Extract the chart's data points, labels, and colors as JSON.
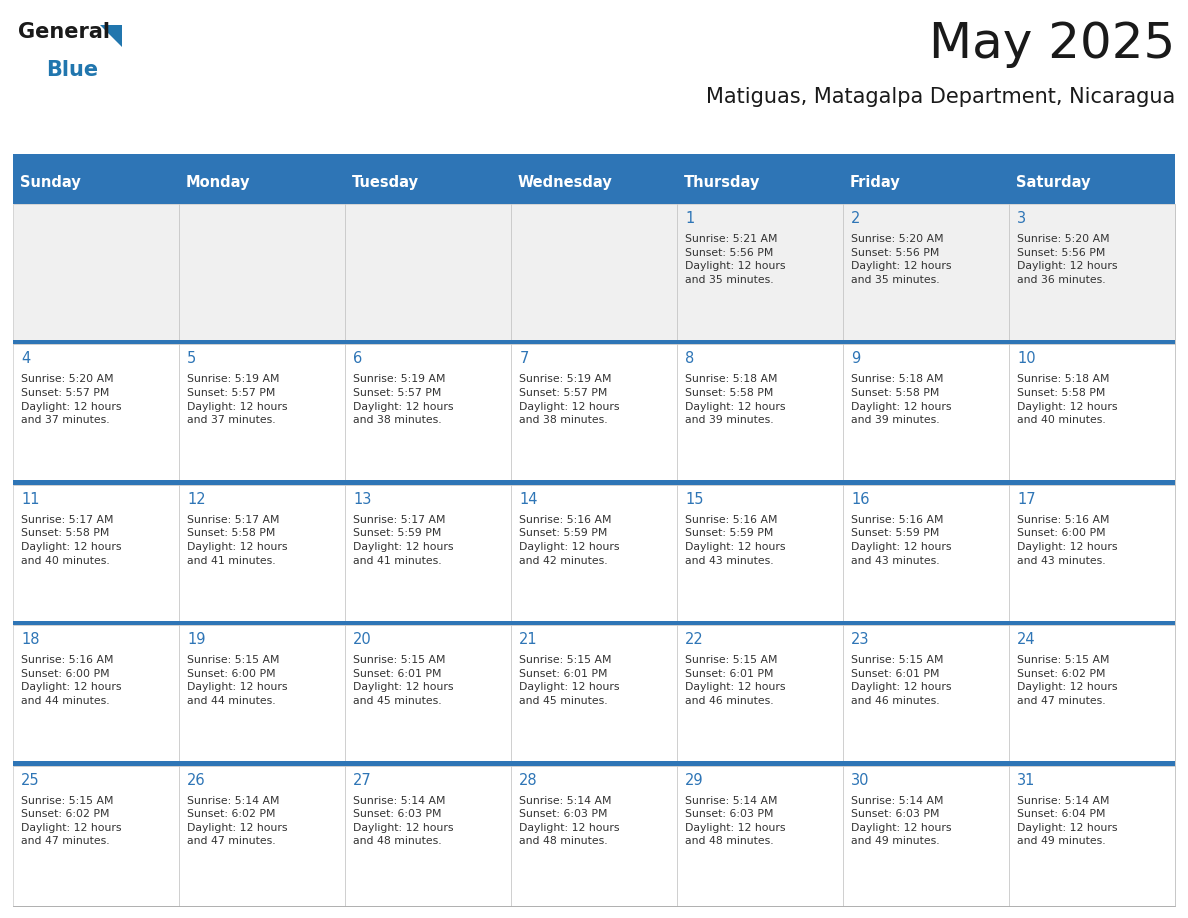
{
  "title": "May 2025",
  "subtitle": "Matiguas, Matagalpa Department, Nicaragua",
  "days_of_week": [
    "Sunday",
    "Monday",
    "Tuesday",
    "Wednesday",
    "Thursday",
    "Friday",
    "Saturday"
  ],
  "header_bg_color": "#2E75B6",
  "header_text_color": "#FFFFFF",
  "cell_bg_color_light": "#F0F0F0",
  "cell_bg_color_white": "#FFFFFF",
  "separator_color": "#2E75B6",
  "day_number_color": "#2E75B6",
  "cell_text_color": "#333333",
  "title_color": "#1a1a1a",
  "logo_general_color": "#1a1a1a",
  "logo_blue_color": "#2176AE",
  "calendar_data": [
    [
      null,
      null,
      null,
      null,
      {
        "day": 1,
        "sunrise": "5:21 AM",
        "sunset": "5:56 PM",
        "daylight": "12 hours\nand 35 minutes."
      },
      {
        "day": 2,
        "sunrise": "5:20 AM",
        "sunset": "5:56 PM",
        "daylight": "12 hours\nand 35 minutes."
      },
      {
        "day": 3,
        "sunrise": "5:20 AM",
        "sunset": "5:56 PM",
        "daylight": "12 hours\nand 36 minutes."
      }
    ],
    [
      {
        "day": 4,
        "sunrise": "5:20 AM",
        "sunset": "5:57 PM",
        "daylight": "12 hours\nand 37 minutes."
      },
      {
        "day": 5,
        "sunrise": "5:19 AM",
        "sunset": "5:57 PM",
        "daylight": "12 hours\nand 37 minutes."
      },
      {
        "day": 6,
        "sunrise": "5:19 AM",
        "sunset": "5:57 PM",
        "daylight": "12 hours\nand 38 minutes."
      },
      {
        "day": 7,
        "sunrise": "5:19 AM",
        "sunset": "5:57 PM",
        "daylight": "12 hours\nand 38 minutes."
      },
      {
        "day": 8,
        "sunrise": "5:18 AM",
        "sunset": "5:58 PM",
        "daylight": "12 hours\nand 39 minutes."
      },
      {
        "day": 9,
        "sunrise": "5:18 AM",
        "sunset": "5:58 PM",
        "daylight": "12 hours\nand 39 minutes."
      },
      {
        "day": 10,
        "sunrise": "5:18 AM",
        "sunset": "5:58 PM",
        "daylight": "12 hours\nand 40 minutes."
      }
    ],
    [
      {
        "day": 11,
        "sunrise": "5:17 AM",
        "sunset": "5:58 PM",
        "daylight": "12 hours\nand 40 minutes."
      },
      {
        "day": 12,
        "sunrise": "5:17 AM",
        "sunset": "5:58 PM",
        "daylight": "12 hours\nand 41 minutes."
      },
      {
        "day": 13,
        "sunrise": "5:17 AM",
        "sunset": "5:59 PM",
        "daylight": "12 hours\nand 41 minutes."
      },
      {
        "day": 14,
        "sunrise": "5:16 AM",
        "sunset": "5:59 PM",
        "daylight": "12 hours\nand 42 minutes."
      },
      {
        "day": 15,
        "sunrise": "5:16 AM",
        "sunset": "5:59 PM",
        "daylight": "12 hours\nand 43 minutes."
      },
      {
        "day": 16,
        "sunrise": "5:16 AM",
        "sunset": "5:59 PM",
        "daylight": "12 hours\nand 43 minutes."
      },
      {
        "day": 17,
        "sunrise": "5:16 AM",
        "sunset": "6:00 PM",
        "daylight": "12 hours\nand 43 minutes."
      }
    ],
    [
      {
        "day": 18,
        "sunrise": "5:16 AM",
        "sunset": "6:00 PM",
        "daylight": "12 hours\nand 44 minutes."
      },
      {
        "day": 19,
        "sunrise": "5:15 AM",
        "sunset": "6:00 PM",
        "daylight": "12 hours\nand 44 minutes."
      },
      {
        "day": 20,
        "sunrise": "5:15 AM",
        "sunset": "6:01 PM",
        "daylight": "12 hours\nand 45 minutes."
      },
      {
        "day": 21,
        "sunrise": "5:15 AM",
        "sunset": "6:01 PM",
        "daylight": "12 hours\nand 45 minutes."
      },
      {
        "day": 22,
        "sunrise": "5:15 AM",
        "sunset": "6:01 PM",
        "daylight": "12 hours\nand 46 minutes."
      },
      {
        "day": 23,
        "sunrise": "5:15 AM",
        "sunset": "6:01 PM",
        "daylight": "12 hours\nand 46 minutes."
      },
      {
        "day": 24,
        "sunrise": "5:15 AM",
        "sunset": "6:02 PM",
        "daylight": "12 hours\nand 47 minutes."
      }
    ],
    [
      {
        "day": 25,
        "sunrise": "5:15 AM",
        "sunset": "6:02 PM",
        "daylight": "12 hours\nand 47 minutes."
      },
      {
        "day": 26,
        "sunrise": "5:14 AM",
        "sunset": "6:02 PM",
        "daylight": "12 hours\nand 47 minutes."
      },
      {
        "day": 27,
        "sunrise": "5:14 AM",
        "sunset": "6:03 PM",
        "daylight": "12 hours\nand 48 minutes."
      },
      {
        "day": 28,
        "sunrise": "5:14 AM",
        "sunset": "6:03 PM",
        "daylight": "12 hours\nand 48 minutes."
      },
      {
        "day": 29,
        "sunrise": "5:14 AM",
        "sunset": "6:03 PM",
        "daylight": "12 hours\nand 48 minutes."
      },
      {
        "day": 30,
        "sunrise": "5:14 AM",
        "sunset": "6:03 PM",
        "daylight": "12 hours\nand 49 minutes."
      },
      {
        "day": 31,
        "sunrise": "5:14 AM",
        "sunset": "6:04 PM",
        "daylight": "12 hours\nand 49 minutes."
      }
    ]
  ]
}
